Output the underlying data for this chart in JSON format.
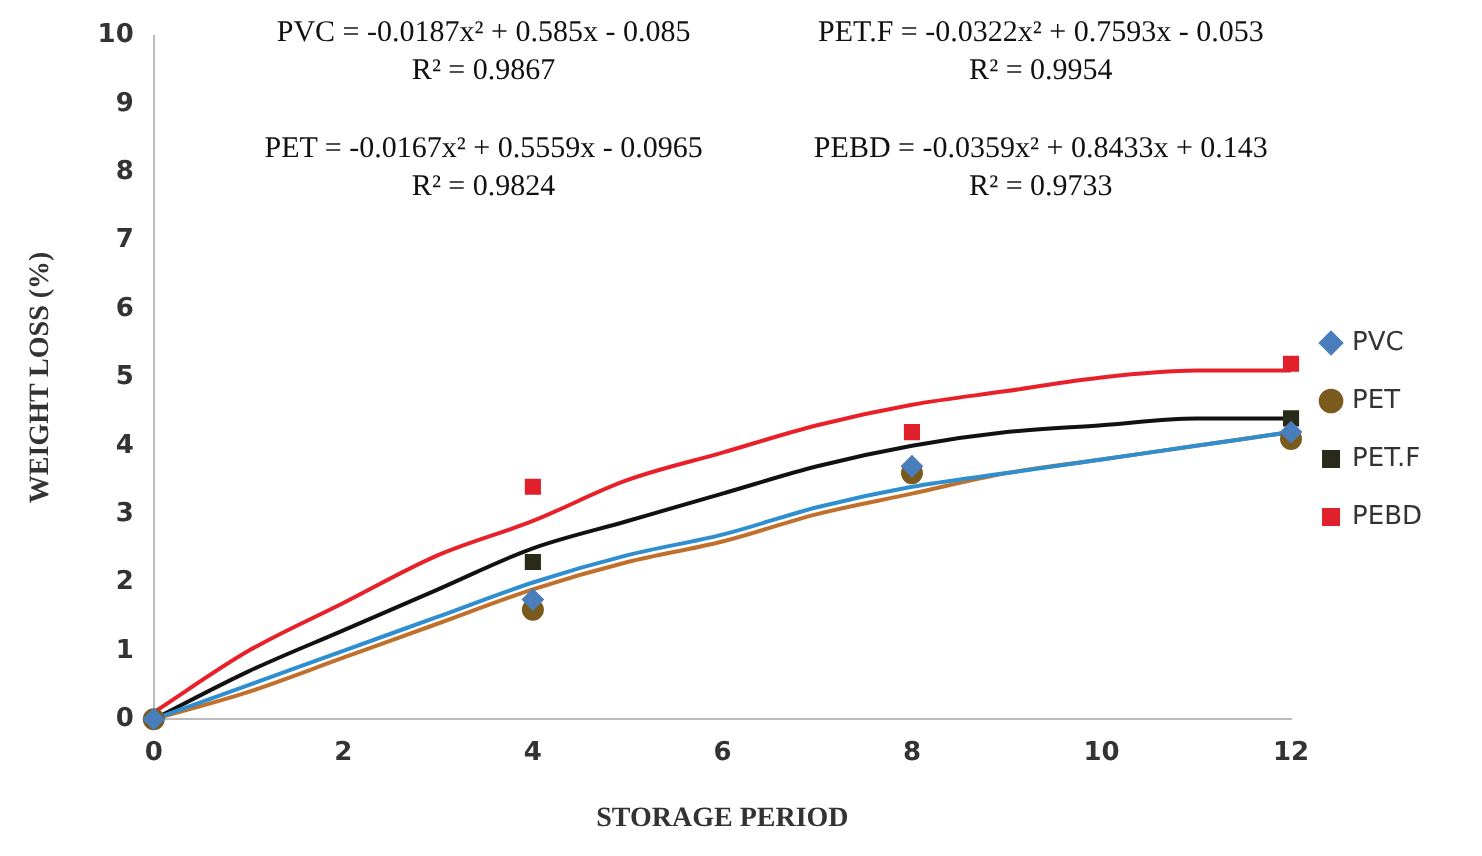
{
  "chart_data": {
    "type": "scatter",
    "xlabel": "STORAGE PERIOD",
    "ylabel": "WEIGHT LOSS (%)",
    "xlim": [
      0,
      12
    ],
    "xticks": [
      0,
      2,
      4,
      6,
      8,
      10,
      12
    ],
    "ylim": [
      0,
      10
    ],
    "yticks": [
      0,
      1,
      2,
      3,
      4,
      5,
      6,
      7,
      8,
      9,
      10
    ],
    "grid": false,
    "legend": "right",
    "series": [
      {
        "type": "line",
        "color": "#2e8ed0",
        "marker": "none",
        "line_style": "solid",
        "x": [
          0,
          1,
          2,
          3,
          4,
          5,
          6,
          7,
          8,
          9,
          10,
          11,
          12
        ],
        "values": [
          0,
          0.5,
          1.0,
          1.5,
          2.0,
          2.4,
          2.7,
          3.1,
          3.4,
          3.6,
          3.8,
          4.0,
          4.2
        ]
      },
      {
        "type": "line",
        "color": "#c0702a",
        "marker": "none",
        "line_style": "solid",
        "x": [
          0,
          1,
          2,
          3,
          4,
          5,
          6,
          7,
          8,
          9,
          10,
          11,
          12
        ],
        "values": [
          0,
          0.4,
          0.9,
          1.4,
          1.9,
          2.3,
          2.6,
          3.0,
          3.3,
          3.6,
          3.8,
          4.0,
          4.2
        ]
      },
      {
        "type": "line",
        "color": "#111111",
        "marker": "none",
        "line_style": "solid",
        "x": [
          0,
          1,
          2,
          3,
          4,
          5,
          6,
          7,
          8,
          9,
          10,
          11,
          12
        ],
        "values": [
          0,
          0.7,
          1.3,
          1.9,
          2.5,
          2.9,
          3.3,
          3.7,
          4.0,
          4.2,
          4.3,
          4.4,
          4.4
        ]
      },
      {
        "type": "line",
        "color": "#e8202a",
        "marker": "none",
        "line_style": "solid",
        "x": [
          0,
          1,
          2,
          3,
          4,
          5,
          6,
          7,
          8,
          9,
          10,
          11,
          12
        ],
        "values": [
          0.1,
          1.0,
          1.7,
          2.4,
          2.9,
          3.5,
          3.9,
          4.3,
          4.6,
          4.8,
          5.0,
          5.1,
          5.1
        ]
      },
      {
        "name": "PVC",
        "color": "#4a7ebb",
        "marker": "diamond",
        "x": [
          0,
          4,
          8,
          12
        ],
        "values": [
          0,
          1.75,
          3.7,
          4.2
        ]
      },
      {
        "name": "PET",
        "color": "#7b5a1e",
        "marker": "circle",
        "x": [
          0,
          4,
          8,
          12
        ],
        "values": [
          0,
          1.6,
          3.6,
          4.1
        ]
      },
      {
        "name": "PET.F",
        "color": "#2a2a1a",
        "marker": "square",
        "x": [
          4,
          12
        ],
        "values": [
          2.3,
          4.4
        ]
      },
      {
        "name": "PEBD",
        "color": "#e0202a",
        "marker": "square",
        "x": [
          4,
          8,
          12
        ],
        "values": [
          3.4,
          4.2,
          5.2
        ]
      }
    ],
    "annotations": [
      "PVC = -0.0187x² + 0.585x - 0.085",
      "R² = 0.9867",
      "PET.F = -0.0322x² + 0.7593x - 0.053",
      "R² = 0.9954",
      "PET = -0.0167x² + 0.5559x - 0.0965",
      "R² = 0.9824",
      "PEBD = -0.0359x² + 0.8433x + 0.143",
      "R² = 0.9733"
    ]
  }
}
